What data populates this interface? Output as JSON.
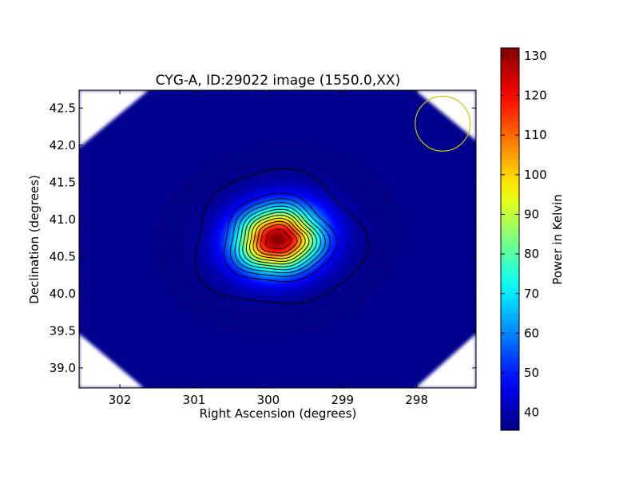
{
  "chart_data": {
    "type": "heatmap",
    "title": "CYG-A, ID:29022 image (1550.0,XX)",
    "xlabel": "Right Ascension (degrees)",
    "ylabel": "Declination (degrees)",
    "xlim": [
      302.55,
      297.2
    ],
    "ylim": [
      38.73,
      42.74
    ],
    "x_ticks": [
      302,
      301,
      300,
      299,
      298
    ],
    "x_tick_labels": [
      "302",
      "301",
      "300",
      "299",
      "298"
    ],
    "y_ticks": [
      39.0,
      39.5,
      40.0,
      40.5,
      41.0,
      41.5,
      42.0,
      42.5
    ],
    "y_tick_labels": [
      "39.0",
      "39.5",
      "40.0",
      "40.5",
      "41.0",
      "41.5",
      "42.0",
      "42.5"
    ],
    "colorbar": {
      "label": "Power in Kelvin",
      "range": [
        35.5,
        132
      ],
      "ticks": [
        40,
        50,
        60,
        70,
        80,
        90,
        100,
        110,
        120,
        130
      ],
      "tick_labels": [
        "40",
        "50",
        "60",
        "70",
        "80",
        "90",
        "100",
        "110",
        "120",
        "130"
      ],
      "colormap": "jet"
    },
    "source": {
      "center_ra": 299.87,
      "center_dec": 40.73,
      "peak": 132,
      "background": 36
    },
    "contour_levels": [
      42,
      52,
      60,
      67,
      74,
      81,
      88,
      95,
      102,
      109,
      116,
      124
    ],
    "beam_circle": {
      "center_ra": 297.65,
      "center_dec": 42.29,
      "radius_deg": 0.37,
      "color": "#c8c800"
    },
    "missing_corner_color": "#ffffff",
    "grid": false,
    "legend": false
  }
}
